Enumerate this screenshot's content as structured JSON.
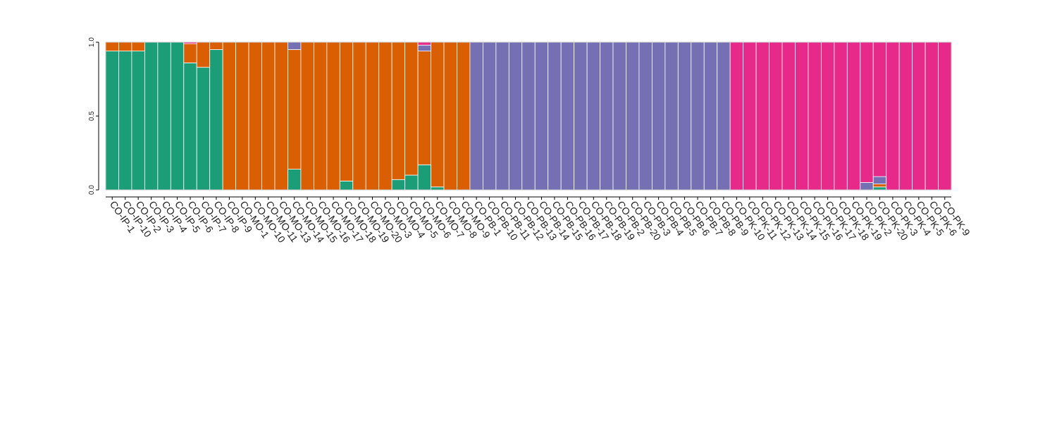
{
  "chart_data": {
    "type": "bar",
    "stacked": true,
    "title": "",
    "xlabel": "",
    "ylabel": "",
    "ylim": [
      0,
      1
    ],
    "yticks": [
      "0.0",
      "0.5",
      "1.0"
    ],
    "grid": false,
    "legend": "none",
    "categories": [
      "CO-IP-1",
      "CO-IP-10",
      "CO-IP-2",
      "CO-IP-3",
      "CO-IP-4",
      "CO-IP-5",
      "CO-IP-6",
      "CO-IP-7",
      "CO-IP-8",
      "CO-IP-9",
      "CO-MO-1",
      "CO-MO-10",
      "CO-MO-11",
      "CO-MO-13",
      "CO-MO-14",
      "CO-MO-15",
      "CO-MO-16",
      "CO-MO-17",
      "CO-MO-18",
      "CO-MO-19",
      "CO-MO-20",
      "CO-MO-3",
      "CO-MO-4",
      "CO-MO-5",
      "CO-MO-6",
      "CO-MO-7",
      "CO-MO-8",
      "CO-MO-9",
      "CO-PB-1",
      "CO-PB-10",
      "CO-PB-11",
      "CO-PB-12",
      "CO-PB-13",
      "CO-PB-14",
      "CO-PB-15",
      "CO-PB-16",
      "CO-PB-17",
      "CO-PB-18",
      "CO-PB-19",
      "CO-PB-2",
      "CO-PB-20",
      "CO-PB-3",
      "CO-PB-4",
      "CO-PB-5",
      "CO-PB-6",
      "CO-PB-7",
      "CO-PB-8",
      "CO-PB-9",
      "CO-PK-10",
      "CO-PK-11",
      "CO-PK-12",
      "CO-PK-13",
      "CO-PK-14",
      "CO-PK-15",
      "CO-PK-16",
      "CO-PK-17",
      "CO-PK-18",
      "CO-PK-19",
      "CO-PK-2",
      "CO-PK-20",
      "CO-PK-3",
      "CO-PK-4",
      "CO-PK-5",
      "CO-PK-6",
      "CO-PK-9"
    ],
    "series": [
      {
        "color": "#1b9e77",
        "values": [
          0.94,
          0.94,
          0.94,
          1,
          1,
          1,
          0.86,
          0.83,
          0.95,
          0,
          0,
          0,
          0,
          0,
          0.14,
          0,
          0,
          0,
          0.06,
          0,
          0,
          0,
          0.07,
          0.1,
          0.17,
          0.02,
          0,
          0,
          0,
          0,
          0,
          0,
          0,
          0,
          0,
          0,
          0,
          0,
          0,
          0,
          0,
          0,
          0,
          0,
          0,
          0,
          0,
          0,
          0,
          0,
          0,
          0,
          0,
          0,
          0,
          0,
          0,
          0,
          0,
          0.02,
          0,
          0,
          0,
          0,
          0
        ]
      },
      {
        "color": "#d95f02",
        "values": [
          0.06,
          0.06,
          0.06,
          0,
          0,
          0,
          0.13,
          0.17,
          0.05,
          1,
          1,
          1,
          1,
          1,
          0.81,
          1,
          1,
          1,
          0.94,
          1,
          1,
          1,
          0.93,
          0.9,
          0.77,
          0.98,
          1,
          1,
          0,
          0,
          0,
          0,
          0,
          0,
          0,
          0,
          0,
          0,
          0,
          0,
          0,
          0,
          0,
          0,
          0,
          0,
          0,
          0,
          0,
          0,
          0,
          0,
          0,
          0,
          0,
          0,
          0,
          0,
          0,
          0.02,
          0,
          0,
          0,
          0,
          0
        ]
      },
      {
        "color": "#7570b3",
        "values": [
          0,
          0,
          0,
          0,
          0,
          0,
          0,
          0,
          0,
          0,
          0,
          0,
          0,
          0,
          0.05,
          0,
          0,
          0,
          0,
          0,
          0,
          0,
          0,
          0,
          0.04,
          0,
          0,
          0,
          1,
          1,
          1,
          1,
          1,
          1,
          1,
          1,
          1,
          1,
          1,
          1,
          1,
          1,
          1,
          1,
          1,
          1,
          1,
          1,
          0,
          0,
          0,
          0,
          0,
          0,
          0,
          0,
          0,
          0,
          0.05,
          0.05,
          0,
          0,
          0,
          0,
          0
        ]
      },
      {
        "color": "#e7298a",
        "values": [
          0,
          0,
          0,
          0,
          0,
          0,
          0.01,
          0,
          0,
          0,
          0,
          0,
          0,
          0,
          0,
          0,
          0,
          0,
          0,
          0,
          0,
          0,
          0,
          0,
          0.02,
          0,
          0,
          0,
          0,
          0,
          0,
          0,
          0,
          0,
          0,
          0,
          0,
          0,
          0,
          0,
          0,
          0,
          0,
          0,
          0,
          0,
          0,
          0,
          1,
          1,
          1,
          1,
          1,
          1,
          1,
          1,
          1,
          1,
          0.95,
          0.91,
          1,
          1,
          1,
          1,
          1
        ]
      }
    ]
  }
}
